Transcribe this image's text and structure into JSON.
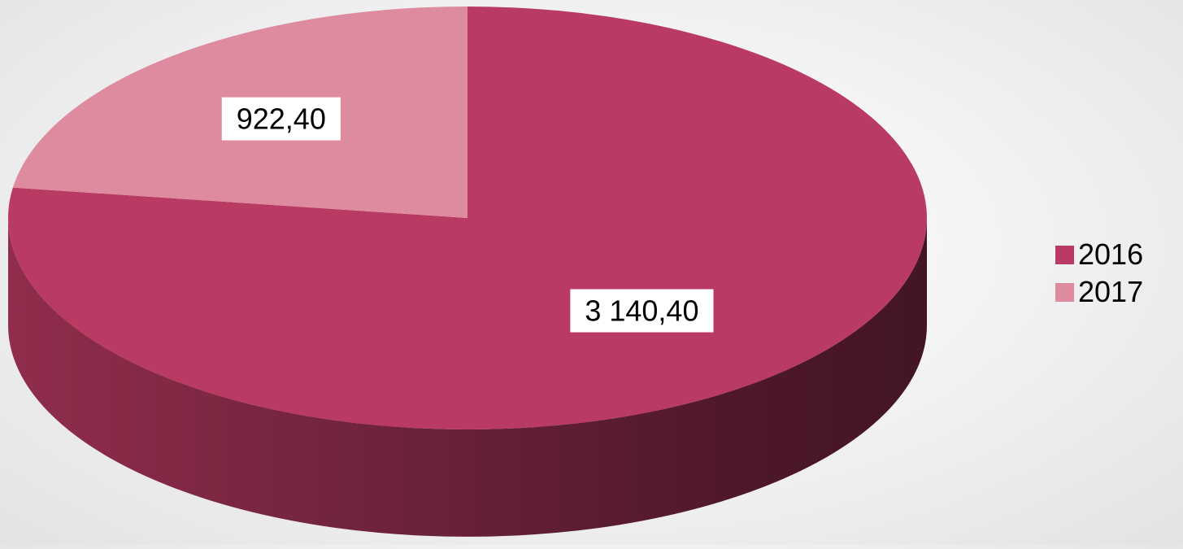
{
  "chart_data": {
    "type": "pie",
    "style": "3d",
    "categories": [
      "2016",
      "2017"
    ],
    "values": [
      3140.4,
      922.4
    ],
    "data_labels": [
      "3 140,40",
      "922,40"
    ],
    "colors": [
      "#b93a62",
      "#de8b9f"
    ],
    "legend": {
      "position": "right",
      "entries": [
        "2016",
        "2017"
      ]
    }
  }
}
